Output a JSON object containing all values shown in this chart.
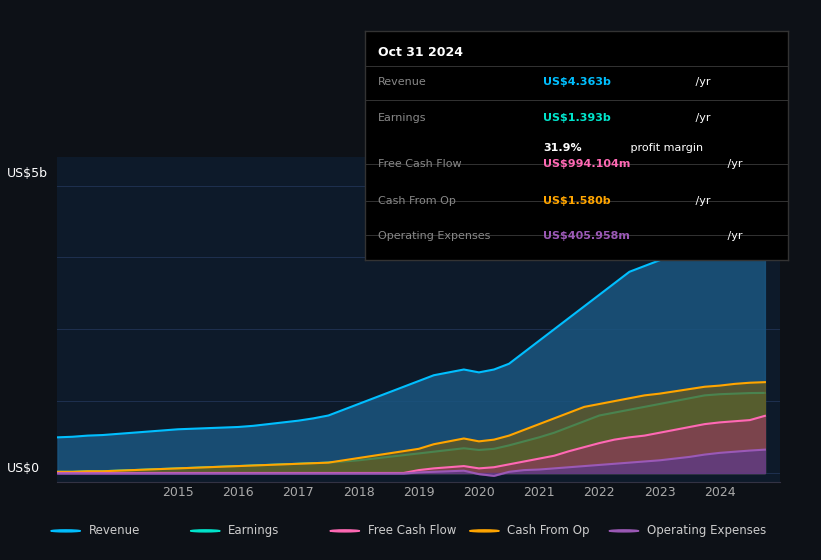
{
  "bg_color": "#0d1117",
  "plot_bg_color": "#0d1a2a",
  "grid_color": "#1e3050",
  "title_label": "US$5b",
  "zero_label": "US$0",
  "years": [
    2013.0,
    2013.25,
    2013.5,
    2013.75,
    2014.0,
    2014.25,
    2014.5,
    2014.75,
    2015.0,
    2015.25,
    2015.5,
    2015.75,
    2016.0,
    2016.25,
    2016.5,
    2016.75,
    2017.0,
    2017.25,
    2017.5,
    2017.75,
    2018.0,
    2018.25,
    2018.5,
    2018.75,
    2019.0,
    2019.25,
    2019.5,
    2019.75,
    2020.0,
    2020.25,
    2020.5,
    2020.75,
    2021.0,
    2021.25,
    2021.5,
    2021.75,
    2022.0,
    2022.25,
    2022.5,
    2022.75,
    2023.0,
    2023.25,
    2023.5,
    2023.75,
    2024.0,
    2024.25,
    2024.5,
    2024.75
  ],
  "revenue": [
    0.62,
    0.63,
    0.65,
    0.66,
    0.68,
    0.7,
    0.72,
    0.74,
    0.76,
    0.77,
    0.78,
    0.79,
    0.8,
    0.82,
    0.85,
    0.88,
    0.91,
    0.95,
    1.0,
    1.1,
    1.2,
    1.3,
    1.4,
    1.5,
    1.6,
    1.7,
    1.75,
    1.8,
    1.75,
    1.8,
    1.9,
    2.1,
    2.3,
    2.5,
    2.7,
    2.9,
    3.1,
    3.3,
    3.5,
    3.6,
    3.7,
    3.8,
    3.9,
    4.0,
    4.1,
    4.2,
    4.3,
    4.36
  ],
  "earnings": [
    0.02,
    0.02,
    0.03,
    0.03,
    0.04,
    0.05,
    0.06,
    0.07,
    0.08,
    0.09,
    0.1,
    0.11,
    0.12,
    0.13,
    0.14,
    0.15,
    0.16,
    0.17,
    0.18,
    0.2,
    0.22,
    0.25,
    0.28,
    0.31,
    0.34,
    0.37,
    0.4,
    0.43,
    0.4,
    0.42,
    0.48,
    0.55,
    0.62,
    0.7,
    0.8,
    0.9,
    1.0,
    1.05,
    1.1,
    1.15,
    1.2,
    1.25,
    1.3,
    1.35,
    1.37,
    1.38,
    1.39,
    1.393
  ],
  "free_cash_flow": [
    0.0,
    0.0,
    0.0,
    0.0,
    0.0,
    0.0,
    0.0,
    0.0,
    0.0,
    0.0,
    0.0,
    0.0,
    0.0,
    0.0,
    0.0,
    0.0,
    0.0,
    0.0,
    0.0,
    0.0,
    0.0,
    0.0,
    0.0,
    0.0,
    0.05,
    0.08,
    0.1,
    0.12,
    0.08,
    0.1,
    0.15,
    0.2,
    0.25,
    0.3,
    0.38,
    0.45,
    0.52,
    0.58,
    0.62,
    0.65,
    0.7,
    0.75,
    0.8,
    0.85,
    0.88,
    0.9,
    0.92,
    0.994
  ],
  "cash_from_op": [
    0.02,
    0.02,
    0.03,
    0.03,
    0.04,
    0.05,
    0.06,
    0.07,
    0.08,
    0.09,
    0.1,
    0.11,
    0.12,
    0.13,
    0.14,
    0.15,
    0.16,
    0.17,
    0.18,
    0.22,
    0.26,
    0.3,
    0.34,
    0.38,
    0.42,
    0.5,
    0.55,
    0.6,
    0.55,
    0.58,
    0.65,
    0.75,
    0.85,
    0.95,
    1.05,
    1.15,
    1.2,
    1.25,
    1.3,
    1.35,
    1.38,
    1.42,
    1.46,
    1.5,
    1.52,
    1.55,
    1.57,
    1.58
  ],
  "operating_expenses": [
    -0.01,
    -0.01,
    -0.01,
    -0.01,
    -0.01,
    -0.01,
    -0.01,
    -0.01,
    -0.01,
    -0.01,
    -0.01,
    -0.01,
    -0.01,
    -0.01,
    -0.01,
    -0.01,
    -0.01,
    -0.01,
    -0.01,
    -0.01,
    -0.01,
    -0.01,
    -0.01,
    -0.01,
    0.01,
    0.02,
    0.03,
    0.04,
    -0.02,
    -0.05,
    0.02,
    0.05,
    0.06,
    0.08,
    0.1,
    0.12,
    0.14,
    0.16,
    0.18,
    0.2,
    0.22,
    0.25,
    0.28,
    0.32,
    0.35,
    0.37,
    0.39,
    0.406
  ],
  "revenue_color": "#00bfff",
  "earnings_color": "#00e5cc",
  "fcf_color": "#ff69b4",
  "cashop_color": "#ffa500",
  "opex_color": "#9b59b6",
  "revenue_fill": "#1a5580",
  "earnings_fill": "#2a6b5a",
  "fcf_fill": "#8b3a5a",
  "cashop_fill": "#6b5a1a",
  "opex_fill": "#5a3a8b",
  "x_ticks": [
    2015,
    2016,
    2017,
    2018,
    2019,
    2020,
    2021,
    2022,
    2023,
    2024
  ],
  "x_min": 2013.0,
  "x_max": 2025.0,
  "y_min": -0.15,
  "y_max": 5.5,
  "legend_items": [
    "Revenue",
    "Earnings",
    "Free Cash Flow",
    "Cash From Op",
    "Operating Expenses"
  ],
  "legend_colors": [
    "#00bfff",
    "#00e5cc",
    "#ff69b4",
    "#ffa500",
    "#9b59b6"
  ],
  "tooltip": {
    "title": "Oct 31 2024",
    "rows": [
      {
        "label": "Revenue",
        "value": "US$4.363b",
        "unit": " /yr",
        "color": "#00bfff",
        "sub": null
      },
      {
        "label": "Earnings",
        "value": "US$1.393b",
        "unit": " /yr",
        "color": "#00e5cc",
        "sub": "31.9% profit margin"
      },
      {
        "label": "Free Cash Flow",
        "value": "US$994.104m",
        "unit": " /yr",
        "color": "#ff69b4",
        "sub": null
      },
      {
        "label": "Cash From Op",
        "value": "US$1.580b",
        "unit": " /yr",
        "color": "#ffa500",
        "sub": null
      },
      {
        "label": "Operating Expenses",
        "value": "US$405.958m",
        "unit": " /yr",
        "color": "#9b59b6",
        "sub": null
      }
    ]
  }
}
